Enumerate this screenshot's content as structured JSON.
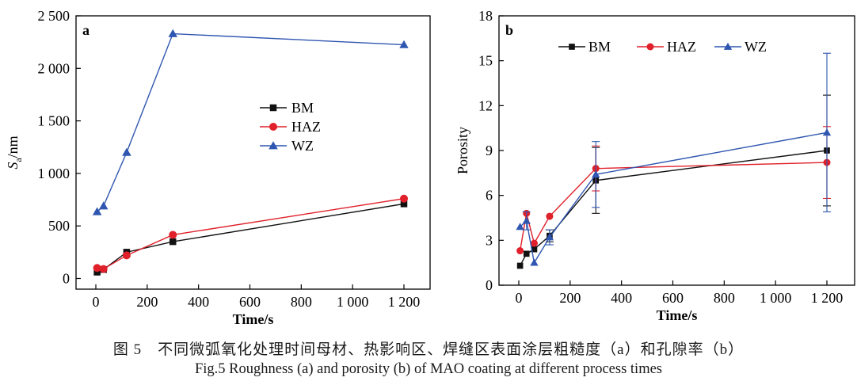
{
  "chart_data": [
    {
      "type": "line",
      "panel_label": "a",
      "xlabel": "Time/s",
      "ylabel_main": "S",
      "ylabel_sub": "a",
      "ylabel_unit": "/nm",
      "xlim": [
        -60,
        1260
      ],
      "ylim": [
        -60,
        2500
      ],
      "xticks": [
        0,
        200,
        400,
        600,
        800,
        1000,
        1200
      ],
      "xtick_labels": [
        "0",
        "200",
        "400",
        "600",
        "800",
        "1 000",
        "1 200"
      ],
      "yticks": [
        0,
        500,
        1000,
        1500,
        2000,
        2500
      ],
      "ytick_labels": [
        "0",
        "500",
        "1 000",
        "1 500",
        "2 000",
        "2 500"
      ],
      "legend_position": "center-right",
      "series": [
        {
          "name": "BM",
          "color": "#111111",
          "marker": "square",
          "x": [
            5,
            30,
            120,
            300,
            1200
          ],
          "y": [
            60,
            85,
            250,
            350,
            710
          ]
        },
        {
          "name": "HAZ",
          "color": "#e0202a",
          "marker": "circle",
          "x": [
            5,
            30,
            120,
            300,
            1200
          ],
          "y": [
            100,
            90,
            220,
            415,
            760
          ]
        },
        {
          "name": "WZ",
          "color": "#2f56b0",
          "marker": "triangle",
          "x": [
            5,
            30,
            120,
            300,
            1200
          ],
          "y": [
            635,
            690,
            1200,
            2330,
            2225
          ]
        }
      ]
    },
    {
      "type": "line",
      "panel_label": "b",
      "xlabel": "Time/s",
      "ylabel": "Porosity",
      "xlim": [
        -60,
        1260
      ],
      "ylim": [
        0,
        18
      ],
      "xticks": [
        0,
        200,
        400,
        600,
        800,
        1000,
        1200
      ],
      "xtick_labels": [
        "0",
        "200",
        "400",
        "600",
        "800",
        "1 000",
        "1 200"
      ],
      "yticks": [
        0,
        3,
        6,
        9,
        12,
        15,
        18
      ],
      "ytick_labels": [
        "0",
        "3",
        "6",
        "9",
        "12",
        "15",
        "18"
      ],
      "legend_position": "top",
      "series": [
        {
          "name": "BM",
          "color": "#111111",
          "marker": "square",
          "x": [
            5,
            30,
            60,
            120,
            300,
            1200
          ],
          "y": [
            1.3,
            2.1,
            2.4,
            3.3,
            7.0,
            9.0
          ],
          "err": [
            0,
            0,
            0,
            0.4,
            2.2,
            3.7
          ]
        },
        {
          "name": "HAZ",
          "color": "#e0202a",
          "marker": "circle",
          "x": [
            5,
            30,
            60,
            120,
            300,
            1200
          ],
          "y": [
            2.3,
            4.8,
            2.8,
            4.6,
            7.8,
            8.2
          ],
          "err": [
            0,
            0,
            0,
            0,
            1.5,
            2.4
          ]
        },
        {
          "name": "WZ",
          "color": "#2f56b0",
          "marker": "triangle",
          "x": [
            5,
            30,
            60,
            120,
            300,
            1200
          ],
          "y": [
            3.9,
            4.3,
            1.5,
            3.2,
            7.4,
            10.2
          ],
          "err": [
            0,
            0.6,
            0,
            0.5,
            2.2,
            5.3
          ]
        }
      ]
    }
  ],
  "caption": {
    "cn": "图 5　不同微弧氧化处理时间母材、热影响区、焊缝区表面涂层粗糙度（a）和孔隙率（b）",
    "en": "Fig.5 Roughness (a) and porosity (b) of MAO coating at different process times"
  }
}
